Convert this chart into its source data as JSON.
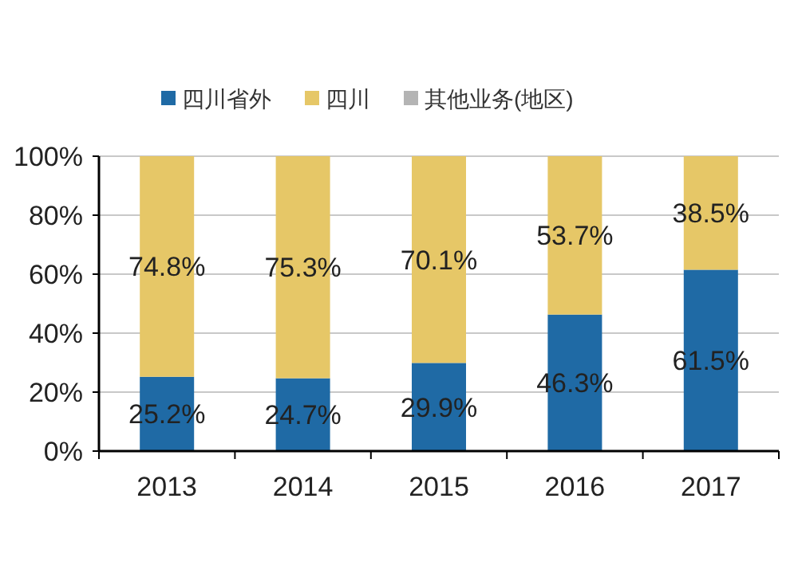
{
  "chart_data": {
    "type": "bar",
    "stacked": true,
    "categories": [
      "2013",
      "2014",
      "2015",
      "2016",
      "2017"
    ],
    "series": [
      {
        "name": "四川省外",
        "color": "#1f6aa5",
        "values": [
          25.2,
          24.7,
          29.9,
          46.3,
          61.5
        ],
        "value_labels": [
          "25.2%",
          "24.7%",
          "29.9%",
          "46.3%",
          "61.5%"
        ]
      },
      {
        "name": "四川",
        "color": "#e6c767",
        "values": [
          74.8,
          75.3,
          70.1,
          53.7,
          38.5
        ],
        "value_labels": [
          "74.8%",
          "75.3%",
          "70.1%",
          "53.7%",
          "38.5%"
        ]
      },
      {
        "name": "其他业务(地区)",
        "color": "#b4b4b4",
        "values": [
          0,
          0,
          0,
          0,
          0
        ]
      }
    ],
    "ylim": [
      0,
      100
    ],
    "yticks": [
      {
        "value": 0,
        "label": "0%"
      },
      {
        "value": 20,
        "label": "20%"
      },
      {
        "value": 40,
        "label": "40%"
      },
      {
        "value": 60,
        "label": "60%"
      },
      {
        "value": 80,
        "label": "80%"
      },
      {
        "value": 100,
        "label": "100%"
      }
    ],
    "grid": "y",
    "legend": "top"
  }
}
